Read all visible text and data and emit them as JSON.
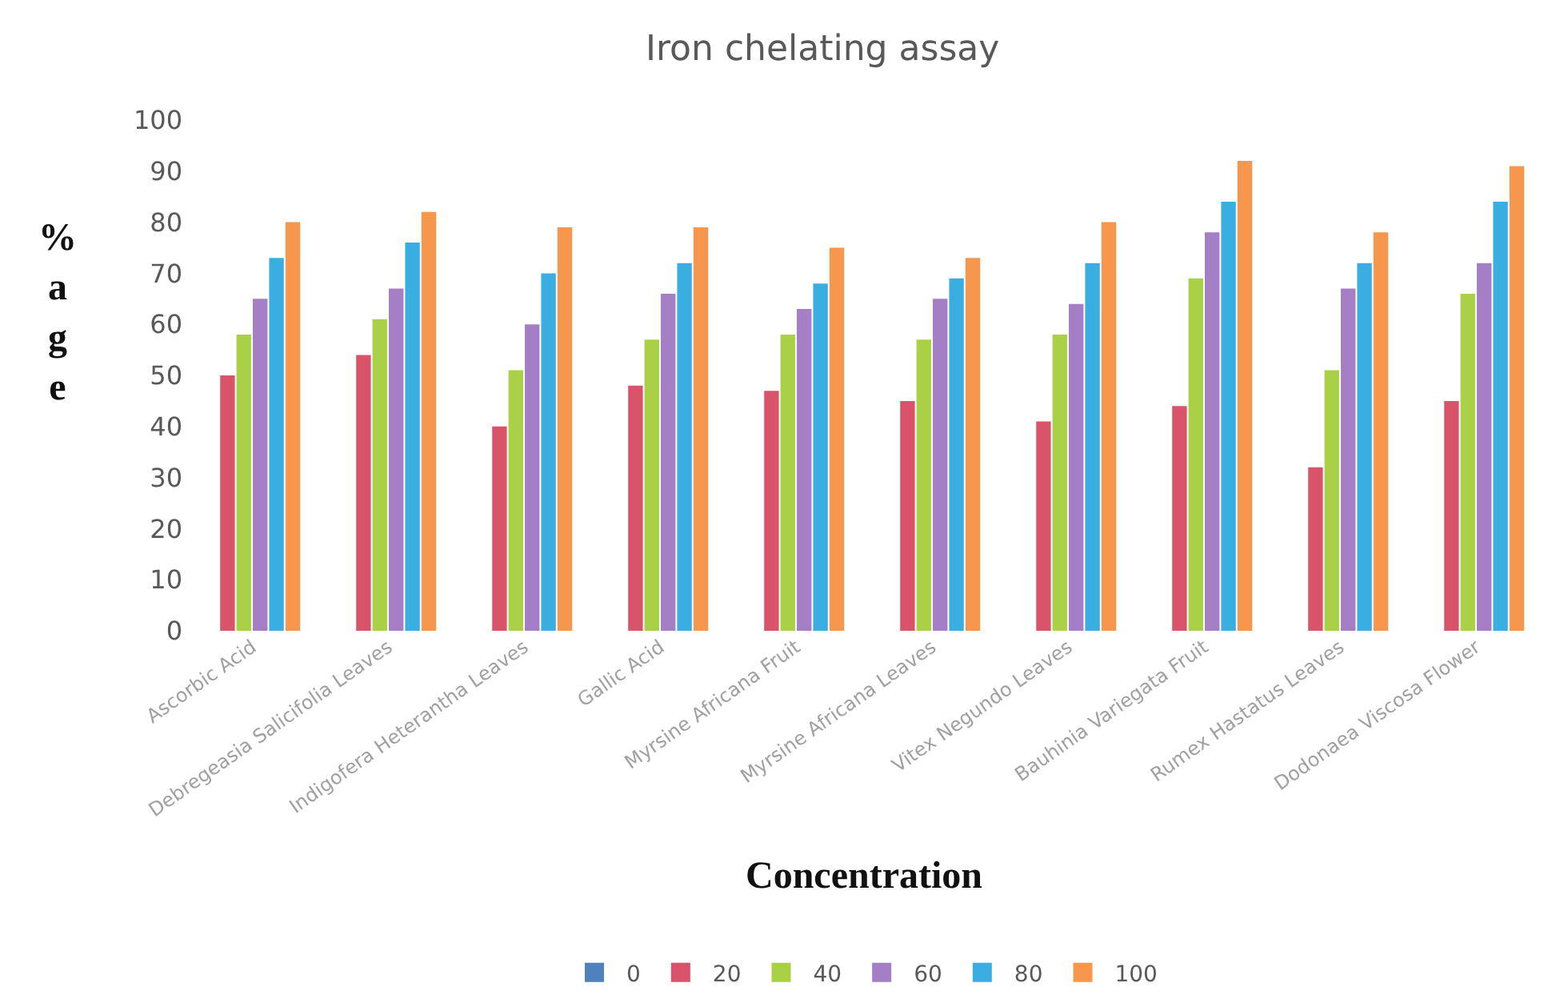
{
  "chart_data": {
    "type": "bar",
    "title": "Iron chelating assay",
    "xlabel": "Concentration",
    "ylabel": "%age",
    "categories": [
      "Ascorbic Acid",
      "Debregeasia Salicifolia Leaves",
      "Indigofera Heterantha Leaves",
      "Gallic Acid",
      "Myrsine Africana Fruit",
      "Myrsine Africana Leaves",
      "Vitex Negundo Leaves",
      "Bauhinia Variegata Fruit",
      "Rumex Hastatus Leaves",
      "Dodonaea Viscosa Flower"
    ],
    "series": [
      {
        "name": "0",
        "color": "#4f81bd",
        "values": [
          0,
          0,
          0,
          0,
          0,
          0,
          0,
          0,
          0,
          0
        ]
      },
      {
        "name": "20",
        "color": "#d9536b",
        "values": [
          50,
          54,
          40,
          48,
          47,
          45,
          41,
          44,
          32,
          45
        ]
      },
      {
        "name": "40",
        "color": "#a9d046",
        "values": [
          58,
          61,
          51,
          57,
          58,
          57,
          58,
          69,
          51,
          66
        ]
      },
      {
        "name": "60",
        "color": "#a57fc6",
        "values": [
          65,
          67,
          60,
          66,
          63,
          65,
          64,
          78,
          67,
          72
        ]
      },
      {
        "name": "80",
        "color": "#3aaee0",
        "values": [
          73,
          76,
          70,
          72,
          68,
          69,
          72,
          84,
          72,
          84
        ]
      },
      {
        "name": "100",
        "color": "#f7964d",
        "values": [
          80,
          82,
          79,
          79,
          75,
          73,
          80,
          92,
          78,
          91
        ]
      }
    ],
    "ylim": [
      0,
      100
    ],
    "yticks": [
      0,
      10,
      20,
      30,
      40,
      50,
      60,
      70,
      80,
      90,
      100
    ],
    "legend": "bottom"
  }
}
